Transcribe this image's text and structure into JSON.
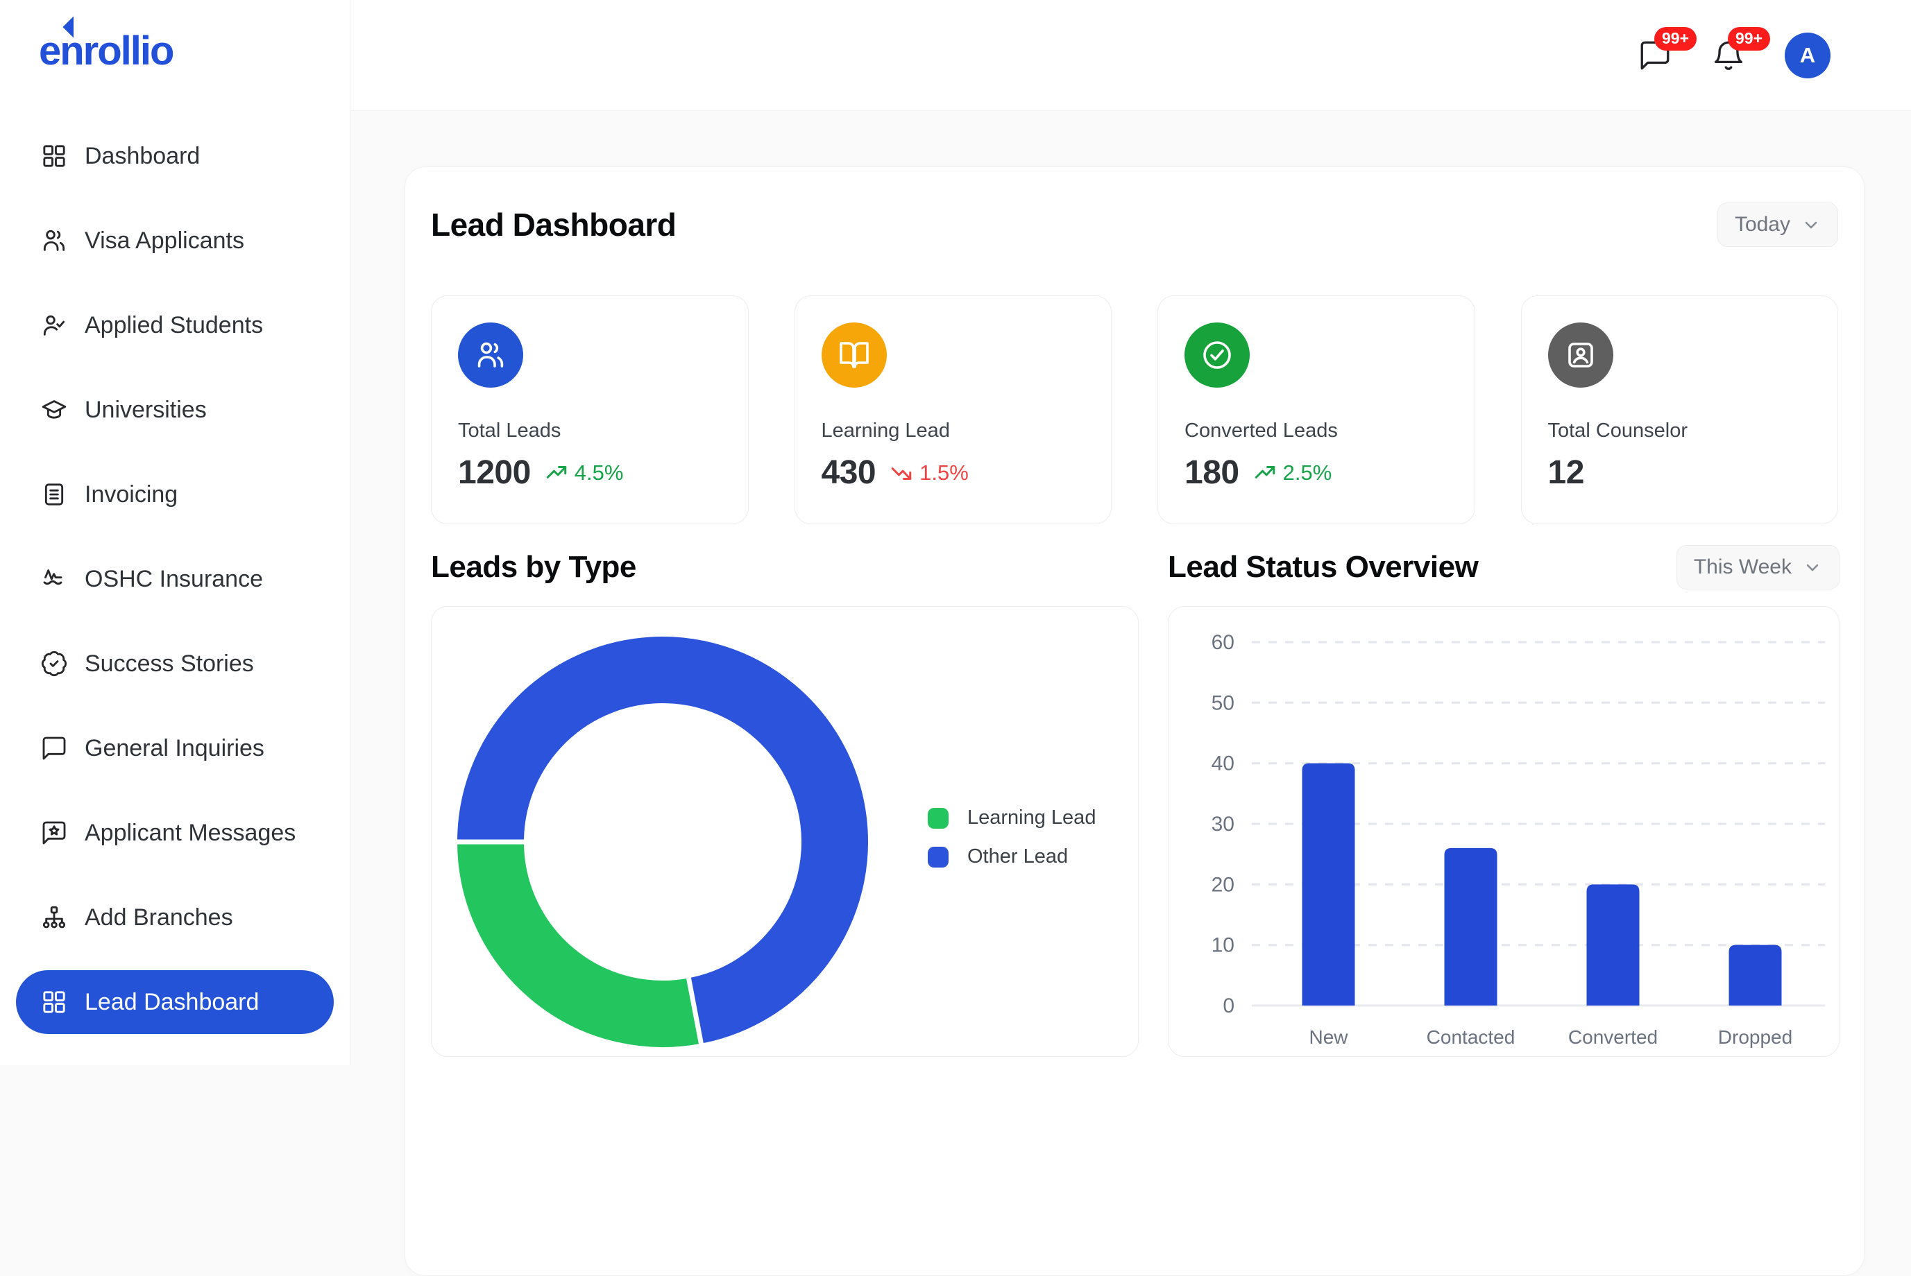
{
  "brand": {
    "logo_text": "enrollio"
  },
  "colors": {
    "primary_blue": "#2553d8",
    "icon_blue": "#2254d3",
    "icon_orange": "#f6a609",
    "icon_green": "#17a23b",
    "icon_gray": "#5f5f5f",
    "trend_up_green": "#16a34a",
    "trend_down_red": "#ef4444",
    "badge_red": "#fb1c1c",
    "donut_green": "#22c55e",
    "donut_blue": "#2b53dc",
    "bar_blue": "#2449d4"
  },
  "sidebar": {
    "items": [
      {
        "label": "Dashboard",
        "icon": "grid",
        "active": false
      },
      {
        "label": "Visa Applicants",
        "icon": "users",
        "active": false
      },
      {
        "label": "Applied Students",
        "icon": "user-check",
        "active": false
      },
      {
        "label": "Universities",
        "icon": "grad-cap",
        "active": false
      },
      {
        "label": "Invoicing",
        "icon": "file-text",
        "active": false
      },
      {
        "label": "OSHC Insurance",
        "icon": "activity",
        "active": false
      },
      {
        "label": "Success Stories",
        "icon": "badge-check",
        "active": false
      },
      {
        "label": "General Inquiries",
        "icon": "message",
        "active": false
      },
      {
        "label": "Applicant Messages",
        "icon": "message-star",
        "active": false
      },
      {
        "label": "Add Branches",
        "icon": "org-tree",
        "active": false
      },
      {
        "label": "Lead Dashboard",
        "icon": "grid",
        "active": true
      }
    ]
  },
  "topbar": {
    "messages_badge": "99+",
    "notifications_badge": "99+",
    "avatar_initial": "A"
  },
  "main": {
    "title": "Lead Dashboard",
    "range_label": "Today",
    "stats": [
      {
        "label": "Total Leads",
        "value": "1200",
        "trend": "4.5%",
        "trend_direction": "up",
        "icon": "users",
        "icon_bg": "#2254d3"
      },
      {
        "label": "Learning Lead",
        "value": "430",
        "trend": "1.5%",
        "trend_direction": "down",
        "icon": "book-open",
        "icon_bg": "#f6a609"
      },
      {
        "label": "Converted Leads",
        "value": "180",
        "trend": "2.5%",
        "trend_direction": "up",
        "icon": "circle-check",
        "icon_bg": "#17a23b"
      },
      {
        "label": "Total Counselor",
        "value": "12",
        "trend": null,
        "trend_direction": null,
        "icon": "id-card",
        "icon_bg": "#5f5f5f"
      }
    ]
  },
  "chart_data": [
    {
      "type": "pie",
      "title": "Leads by Type",
      "donut": true,
      "inner_radius_ratio": 0.675,
      "start_angle_deg": 180,
      "direction": "clockwise",
      "legend_position": "right",
      "segments": [
        {
          "label": "Learning Lead",
          "color": "#22c55e",
          "percent": 28
        },
        {
          "label": "Other Lead",
          "color": "#2b53dc",
          "percent": 72
        }
      ]
    },
    {
      "type": "bar",
      "title": "Lead Status Overview",
      "range_label": "This Week",
      "categories": [
        "New",
        "Contacted",
        "Converted",
        "Dropped"
      ],
      "values": [
        40,
        26,
        20,
        10
      ],
      "bar_color": "#2449d4",
      "ylim": [
        0,
        60
      ],
      "ytick_step": 10,
      "grid": "horizontal-dashed",
      "xlabel": "",
      "ylabel": ""
    }
  ]
}
